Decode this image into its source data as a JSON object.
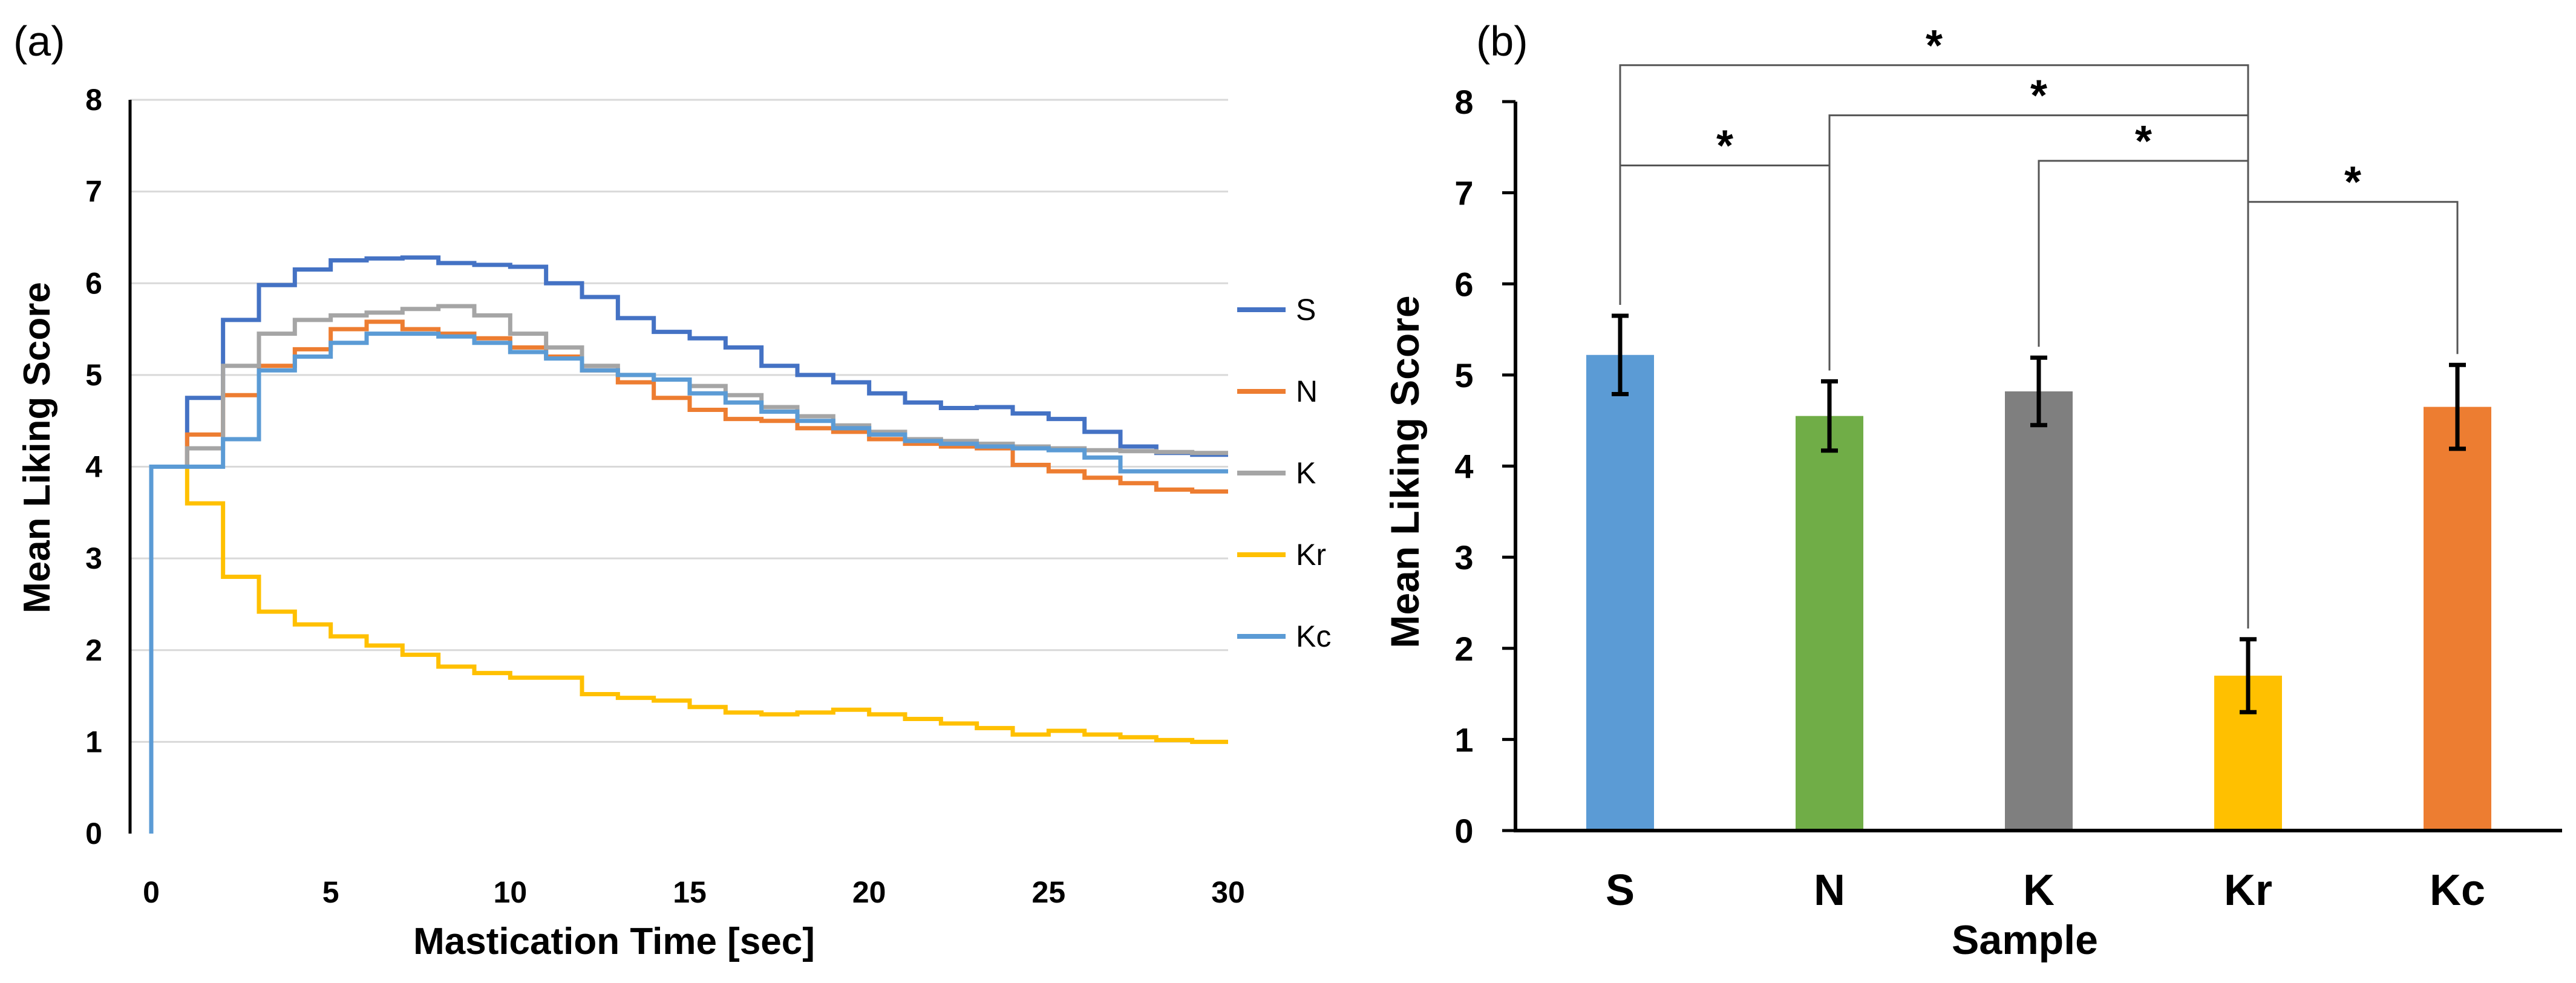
{
  "panels": [
    {
      "label": "(a)",
      "chart_data": {
        "type": "line",
        "step": true,
        "xlabel": "Mastication Time [sec]",
        "ylabel": "Mean Liking Score",
        "xlim": [
          0,
          30
        ],
        "ylim": [
          0,
          8
        ],
        "xticks": [
          "0",
          "5",
          "10",
          "15",
          "20",
          "25",
          "30"
        ],
        "yticks": [
          "0",
          "1",
          "2",
          "3",
          "4",
          "5",
          "6",
          "7",
          "8"
        ],
        "grid": true,
        "legend_position": "right",
        "series": [
          {
            "name": "S",
            "color": "#4472C4",
            "x": [
              0,
              0,
              1,
              2,
              3,
              4,
              5,
              6,
              7,
              8,
              9,
              10,
              11,
              12,
              13,
              14,
              15,
              16,
              17,
              18,
              19,
              20,
              21,
              22,
              23,
              24,
              25,
              26,
              27,
              28,
              29
            ],
            "y": [
              0,
              4.0,
              4.75,
              5.6,
              5.98,
              6.15,
              6.25,
              6.27,
              6.28,
              6.22,
              6.2,
              6.18,
              6.0,
              5.85,
              5.62,
              5.47,
              5.4,
              5.3,
              5.1,
              5.0,
              4.92,
              4.8,
              4.7,
              4.64,
              4.65,
              4.58,
              4.52,
              4.38,
              4.22,
              4.15,
              4.13
            ]
          },
          {
            "name": "N",
            "color": "#ED7D31",
            "x": [
              0,
              0,
              1,
              2,
              3,
              4,
              5,
              6,
              7,
              8,
              9,
              10,
              11,
              12,
              13,
              14,
              15,
              16,
              17,
              18,
              19,
              20,
              21,
              22,
              23,
              24,
              25,
              26,
              27,
              28,
              29
            ],
            "y": [
              0,
              4.0,
              4.35,
              4.78,
              5.1,
              5.28,
              5.5,
              5.58,
              5.5,
              5.45,
              5.4,
              5.3,
              5.2,
              5.05,
              4.92,
              4.75,
              4.62,
              4.52,
              4.5,
              4.42,
              4.38,
              4.3,
              4.25,
              4.22,
              4.2,
              4.02,
              3.95,
              3.88,
              3.82,
              3.75,
              3.73
            ]
          },
          {
            "name": "K",
            "color": "#A5A5A5",
            "x": [
              0,
              0,
              1,
              2,
              3,
              4,
              5,
              6,
              7,
              8,
              9,
              10,
              11,
              12,
              13,
              14,
              15,
              16,
              17,
              18,
              19,
              20,
              21,
              22,
              23,
              24,
              25,
              26,
              27,
              28,
              29
            ],
            "y": [
              0,
              4.0,
              4.2,
              5.1,
              5.45,
              5.6,
              5.65,
              5.68,
              5.72,
              5.75,
              5.65,
              5.45,
              5.3,
              5.1,
              5.0,
              4.95,
              4.88,
              4.78,
              4.65,
              4.55,
              4.45,
              4.38,
              4.3,
              4.28,
              4.25,
              4.22,
              4.2,
              4.18,
              4.17,
              4.16,
              4.15
            ]
          },
          {
            "name": "Kr",
            "color": "#FFC000",
            "x": [
              0,
              0,
              1,
              2,
              3,
              4,
              5,
              6,
              7,
              8,
              9,
              10,
              11,
              12,
              13,
              14,
              15,
              16,
              17,
              18,
              19,
              20,
              21,
              22,
              23,
              24,
              25,
              26,
              27,
              28,
              29
            ],
            "y": [
              0,
              4.0,
              3.6,
              2.8,
              2.42,
              2.28,
              2.15,
              2.05,
              1.95,
              1.82,
              1.75,
              1.7,
              1.7,
              1.52,
              1.48,
              1.45,
              1.38,
              1.32,
              1.3,
              1.32,
              1.35,
              1.3,
              1.25,
              1.2,
              1.15,
              1.08,
              1.12,
              1.08,
              1.05,
              1.02,
              1.0
            ]
          },
          {
            "name": "Kc",
            "color": "#5B9BD5",
            "x": [
              0,
              0,
              1,
              2,
              3,
              4,
              5,
              6,
              7,
              8,
              9,
              10,
              11,
              12,
              13,
              14,
              15,
              16,
              17,
              18,
              19,
              20,
              21,
              22,
              23,
              24,
              25,
              26,
              27,
              28,
              29
            ],
            "y": [
              0,
              4.0,
              4.0,
              4.3,
              5.05,
              5.2,
              5.35,
              5.45,
              5.45,
              5.42,
              5.35,
              5.25,
              5.18,
              5.05,
              5.0,
              4.95,
              4.8,
              4.7,
              4.6,
              4.5,
              4.42,
              4.35,
              4.28,
              4.25,
              4.22,
              4.2,
              4.18,
              4.1,
              3.95,
              3.95,
              3.95
            ]
          }
        ]
      }
    },
    {
      "label": "(b)",
      "chart_data": {
        "type": "bar",
        "xlabel": "Sample",
        "ylabel": "Mean Liking Score",
        "ylim": [
          0,
          8
        ],
        "yticks": [
          "0",
          "1",
          "2",
          "3",
          "4",
          "5",
          "6",
          "7",
          "8"
        ],
        "grid": false,
        "categories": [
          "S",
          "N",
          "K",
          "Kr",
          "Kc"
        ],
        "values": [
          5.22,
          4.55,
          4.82,
          1.7,
          4.65
        ],
        "errors": [
          0.43,
          0.38,
          0.37,
          0.4,
          0.46
        ],
        "colors": [
          "#5B9BD5",
          "#70AD47",
          "#7F7F7F",
          "#FFC000",
          "#ED7D31"
        ],
        "significance": [
          {
            "from": "S",
            "to": "Kr",
            "level": 8.4,
            "label": "*"
          },
          {
            "from": "S",
            "to": "N",
            "level": 7.3,
            "label": "*"
          },
          {
            "from": "N",
            "to": "Kr",
            "level": 7.85,
            "label": "*"
          },
          {
            "from": "K",
            "to": "Kr",
            "level": 7.35,
            "label": "*"
          },
          {
            "from": "Kr",
            "to": "Kc",
            "level": 6.9,
            "label": "*"
          }
        ]
      }
    }
  ]
}
